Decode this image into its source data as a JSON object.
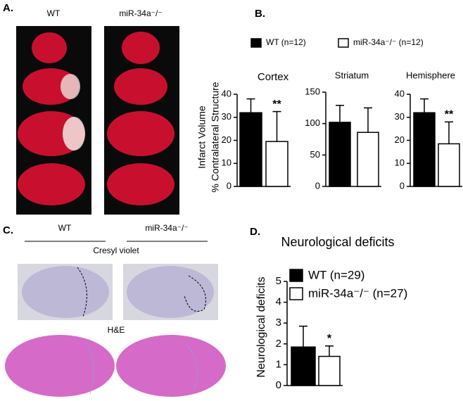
{
  "panels": {
    "a": {
      "label": "A.",
      "wt": "WT",
      "ko": "miR-34a⁻/⁻"
    },
    "b": {
      "label": "B."
    },
    "c": {
      "label": "C.",
      "wt": "WT",
      "ko": "miR-34a⁻/⁻",
      "stain1": "Cresyl violet",
      "stain2": "H&E"
    },
    "d": {
      "label": "D."
    }
  },
  "chart_data": [
    {
      "type": "bar",
      "title": "Cortex",
      "ylabel": [
        "Infarct Volume",
        "% Contralateral Structure"
      ],
      "ylim": [
        0,
        40
      ],
      "yticks": [
        0,
        10,
        20,
        30,
        40
      ],
      "annotation": "**",
      "series": [
        {
          "name": "WT (n=12)",
          "color": "#000000",
          "values": [
            32
          ],
          "errors": [
            6
          ]
        },
        {
          "name": "miR-34a⁻/⁻ (n=12)",
          "color": "#ffffff",
          "values": [
            19.5
          ],
          "errors": [
            13
          ]
        }
      ]
    },
    {
      "type": "bar",
      "title": "Striatum",
      "ylim": [
        0,
        150
      ],
      "yticks": [
        0,
        50,
        100,
        150
      ],
      "series": [
        {
          "color": "#000000",
          "values": [
            102
          ],
          "errors": [
            27
          ]
        },
        {
          "color": "#ffffff",
          "values": [
            86
          ],
          "errors": [
            39
          ]
        }
      ]
    },
    {
      "type": "bar",
      "title": "Hemisphere",
      "ylim": [
        0,
        40
      ],
      "yticks": [
        0,
        10,
        20,
        30,
        40
      ],
      "annotation": "**",
      "series": [
        {
          "color": "#000000",
          "values": [
            32
          ],
          "errors": [
            6
          ]
        },
        {
          "color": "#ffffff",
          "values": [
            18.5
          ],
          "errors": [
            9.5
          ]
        }
      ]
    },
    {
      "type": "bar",
      "title": "Neurological deficits",
      "ylabel": [
        "Neurological deficits"
      ],
      "ylim": [
        0,
        5
      ],
      "yticks": [
        0,
        1,
        2,
        3,
        4,
        5
      ],
      "annotation": "*",
      "series": [
        {
          "name": "WT (n=29)",
          "color": "#000000",
          "values": [
            1.85
          ],
          "errors": [
            1.0
          ]
        },
        {
          "name": "miR-34a⁻/⁻ (n=27)",
          "color": "#ffffff",
          "values": [
            1.4
          ],
          "errors": [
            0.5
          ]
        }
      ]
    }
  ]
}
